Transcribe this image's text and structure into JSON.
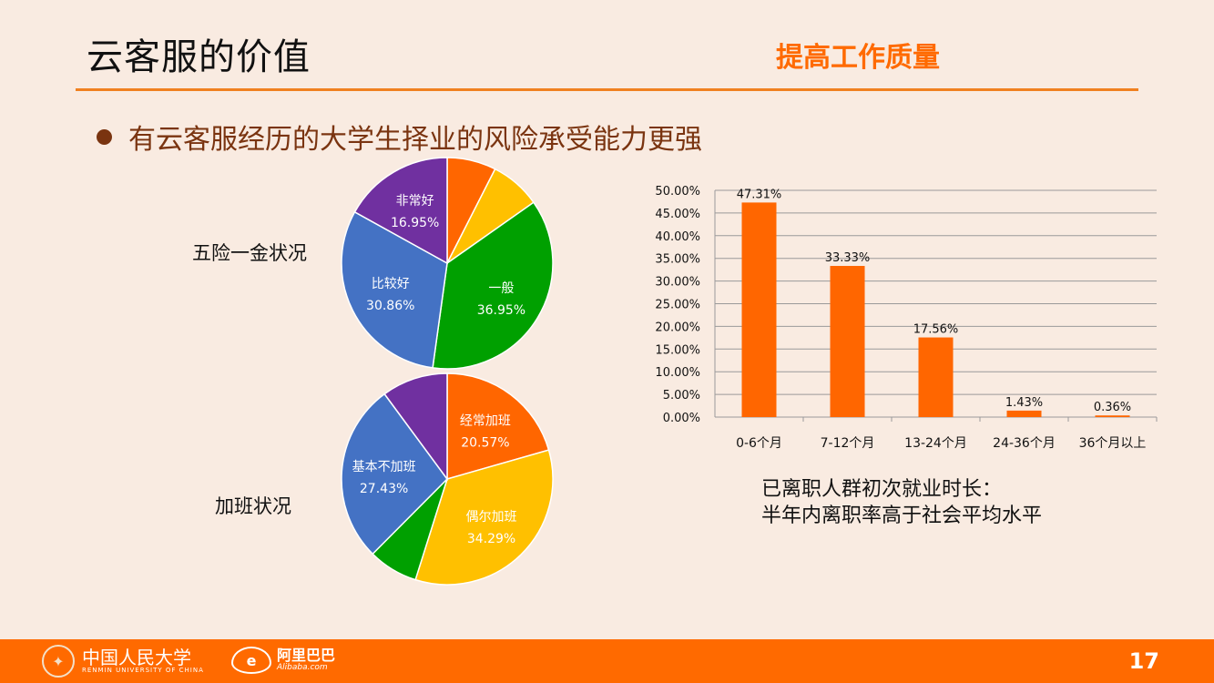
{
  "header": {
    "title": "云客服的价值",
    "tag": "提高工作质量"
  },
  "bullet": "有云客服经历的大学生择业的风险承受能力更强",
  "pie_titles": {
    "insurance": "五险一金状况",
    "overtime": "加班状况"
  },
  "caption": {
    "line1": "已离职人群初次就业时长：",
    "line2": "半年内离职率高于社会平均水平"
  },
  "footer": {
    "logo_ruc_text": "中国人民大学",
    "logo_ruc_sub": "RENMIN UNIVERSITY OF CHINA",
    "logo_ali_text": "阿里巴巴",
    "logo_ali_sub": "Alibaba.com",
    "page_number": "17"
  },
  "colors": {
    "orange": "#ff6600",
    "yellow": "#ffc000",
    "green": "#00a000",
    "blue": "#4472c4",
    "purple": "#7030a0",
    "bar": "#ff6600"
  },
  "chart_data": [
    {
      "type": "pie",
      "title": "五险一金状况",
      "slices": [
        {
          "label": "",
          "value": 7.5,
          "color_key": "orange"
        },
        {
          "label": "",
          "value": 7.74,
          "color_key": "yellow"
        },
        {
          "label": "一般",
          "value": 36.95,
          "value_text": "36.95%",
          "color_key": "green"
        },
        {
          "label": "比较好",
          "value": 30.86,
          "value_text": "30.86%",
          "color_key": "blue"
        },
        {
          "label": "非常好",
          "value": 16.95,
          "value_text": "16.95%",
          "color_key": "purple"
        }
      ]
    },
    {
      "type": "pie",
      "title": "加班状况",
      "slices": [
        {
          "label": "经常加班",
          "value": 20.57,
          "value_text": "20.57%",
          "color_key": "orange"
        },
        {
          "label": "偶尔加班",
          "value": 34.29,
          "value_text": "34.29%",
          "color_key": "yellow"
        },
        {
          "label": "",
          "value": 7.6,
          "color_key": "green"
        },
        {
          "label": "基本不加班",
          "value": 27.43,
          "value_text": "27.43%",
          "color_key": "blue"
        },
        {
          "label": "",
          "value": 10.11,
          "color_key": "purple"
        }
      ]
    },
    {
      "type": "bar",
      "categories": [
        "0-6个月",
        "7-12个月",
        "13-24个月",
        "24-36个月",
        "36个月以上"
      ],
      "values": [
        47.31,
        33.33,
        17.56,
        1.43,
        0.36
      ],
      "value_labels": [
        "47.31%",
        "33.33%",
        "17.56%",
        "1.43%",
        "0.36%"
      ],
      "ylim": [
        0,
        50
      ],
      "yticks": [
        "0.00%",
        "5.00%",
        "10.00%",
        "15.00%",
        "20.00%",
        "25.00%",
        "30.00%",
        "35.00%",
        "40.00%",
        "45.00%",
        "50.00%"
      ],
      "grid": true
    }
  ]
}
